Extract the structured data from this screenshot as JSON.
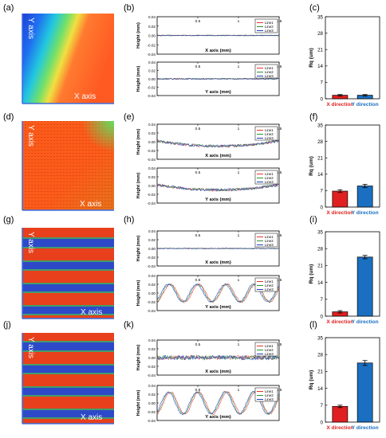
{
  "panel_labels": [
    "(a)",
    "(b)",
    "(c)",
    "(d)",
    "(e)",
    "(f)",
    "(g)",
    "(h)",
    "(i)",
    "(j)",
    "(k)",
    "(l)"
  ],
  "images": [
    {
      "id": "a",
      "x_label": "X axis",
      "y_label": "Y axis",
      "style": "gradient"
    },
    {
      "id": "d",
      "x_label": "X axis",
      "y_label": "Y axis",
      "style": "noise"
    },
    {
      "id": "g",
      "x_label": "X axis",
      "y_label": "Y axis",
      "style": "stripes"
    },
    {
      "id": "j",
      "x_label": "X axis",
      "y_label": "Y axis",
      "style": "stripes"
    }
  ],
  "colors": {
    "line1": "#e8322b",
    "line2": "#2f8f3a",
    "line3": "#1f3fbf",
    "bar_x": "#e02020",
    "bar_y": "#1a6fc0",
    "x_direction_text": "#e02020",
    "y_direction_text": "#1a6fc0"
  },
  "chart_data": [
    {
      "id": "b-top",
      "type": "line",
      "xlabel": "X axis (mm)",
      "ylabel": "Height (mm)",
      "xlim": [
        0,
        1.5
      ],
      "ylim": [
        -0.04,
        0.04
      ],
      "x_ticks": [
        "0.5",
        "1",
        "1.5"
      ],
      "y_ticks": [
        "0.04",
        "0.02",
        "0.00",
        "-0.02",
        "-0.04"
      ],
      "series": [
        {
          "name": "Line1",
          "shape": "flat",
          "amplitude": 0.001
        },
        {
          "name": "Line2",
          "shape": "flat",
          "amplitude": 0.001
        },
        {
          "name": "Line3",
          "shape": "flat",
          "amplitude": 0.001
        }
      ]
    },
    {
      "id": "b-bottom",
      "type": "line",
      "xlabel": "Y axis (mm)",
      "ylabel": "Height (mm)",
      "xlim": [
        0,
        1.5
      ],
      "ylim": [
        -0.04,
        0.04
      ],
      "x_ticks": [
        "0.5",
        "1",
        "1.5"
      ],
      "y_ticks": [
        "0.04",
        "0.02",
        "0.00",
        "-0.02",
        "-0.04"
      ],
      "series": [
        {
          "name": "Line1",
          "shape": "flat",
          "amplitude": 0.0015
        },
        {
          "name": "Line2",
          "shape": "flat",
          "amplitude": 0.0015
        },
        {
          "name": "Line3",
          "shape": "flat",
          "amplitude": 0.0015
        }
      ]
    },
    {
      "id": "e-top",
      "type": "line",
      "xlabel": "X axis (mm)",
      "ylabel": "Height (mm)",
      "xlim": [
        0,
        1.5
      ],
      "ylim": [
        -0.04,
        0.04
      ],
      "x_ticks": [
        "0.5",
        "1",
        "1.5"
      ],
      "y_ticks": [
        "0.04",
        "0.02",
        "0.00",
        "-0.02",
        "-0.04"
      ],
      "series": [
        {
          "name": "Line1",
          "shape": "bowl",
          "amplitude": 0.003
        },
        {
          "name": "Line2",
          "shape": "bowl",
          "amplitude": 0.003
        },
        {
          "name": "Line3",
          "shape": "bowl",
          "amplitude": 0.003
        }
      ]
    },
    {
      "id": "e-bottom",
      "type": "line",
      "xlabel": "Y axis (mm)",
      "ylabel": "Height (mm)",
      "xlim": [
        0,
        1.5
      ],
      "ylim": [
        -0.04,
        0.04
      ],
      "x_ticks": [
        "0.5",
        "1",
        "1.5"
      ],
      "y_ticks": [
        "0.04",
        "0.02",
        "0.00",
        "-0.02",
        "-0.04"
      ],
      "series": [
        {
          "name": "Line1",
          "shape": "bowl",
          "amplitude": 0.003
        },
        {
          "name": "Line2",
          "shape": "bowl",
          "amplitude": 0.003
        },
        {
          "name": "Line3",
          "shape": "bowl",
          "amplitude": 0.003
        }
      ]
    },
    {
      "id": "h-top",
      "type": "line",
      "xlabel": "X axis (mm)",
      "ylabel": "Height (mm)",
      "xlim": [
        0,
        1.5
      ],
      "ylim": [
        -0.04,
        0.04
      ],
      "x_ticks": [
        "0.5",
        "1",
        "1.5"
      ],
      "y_ticks": [
        "0.04",
        "0.02",
        "0.00",
        "-0.02",
        "-0.04"
      ],
      "series": [
        {
          "name": "Line1",
          "shape": "flat",
          "amplitude": 0.001
        },
        {
          "name": "Line2",
          "shape": "flat",
          "amplitude": 0.001
        },
        {
          "name": "Line3",
          "shape": "flat",
          "amplitude": 0.001
        }
      ]
    },
    {
      "id": "h-bottom",
      "type": "line",
      "xlabel": "Y axis (mm)",
      "ylabel": "Height (mm)",
      "xlim": [
        0,
        1.5
      ],
      "ylim": [
        -0.04,
        0.04
      ],
      "x_ticks": [
        "0.5",
        "1",
        "1.5"
      ],
      "y_ticks": [
        "0.04",
        "0.02",
        "0.00",
        "-0.02",
        "-0.04"
      ],
      "series": [
        {
          "name": "Line1",
          "shape": "wave",
          "amplitude": 0.002,
          "wave_amplitude": 0.02,
          "periods": 4.3
        },
        {
          "name": "Line2",
          "shape": "wave",
          "amplitude": 0.002,
          "wave_amplitude": 0.02,
          "periods": 4.3
        },
        {
          "name": "Line3",
          "shape": "wave",
          "amplitude": 0.002,
          "wave_amplitude": 0.02,
          "periods": 4.3
        }
      ]
    },
    {
      "id": "k-top",
      "type": "line",
      "xlabel": "X axis (mm)",
      "ylabel": "Height (mm)",
      "xlim": [
        0,
        1.5
      ],
      "ylim": [
        -0.04,
        0.04
      ],
      "x_ticks": [
        "0.5",
        "1",
        "1.5"
      ],
      "y_ticks": [
        "0.04",
        "0.02",
        "0.00",
        "-0.02",
        "-0.04"
      ],
      "series": [
        {
          "name": "Line1",
          "shape": "flat",
          "amplitude": 0.005
        },
        {
          "name": "Line2",
          "shape": "flat",
          "amplitude": 0.005
        },
        {
          "name": "Line3",
          "shape": "flat",
          "amplitude": 0.005
        }
      ]
    },
    {
      "id": "k-bottom",
      "type": "line",
      "xlabel": "Y axis (mm)",
      "ylabel": "Height (mm)",
      "xlim": [
        0,
        1.5
      ],
      "ylim": [
        -0.04,
        0.04
      ],
      "x_ticks": [
        "0.5",
        "1",
        "1.5"
      ],
      "y_ticks": [
        "0.04",
        "0.02",
        "0.00",
        "-0.02",
        "-0.04"
      ],
      "series": [
        {
          "name": "Line1",
          "shape": "wave",
          "amplitude": 0.002,
          "wave_amplitude": 0.025,
          "periods": 4.3
        },
        {
          "name": "Line2",
          "shape": "wave",
          "amplitude": 0.002,
          "wave_amplitude": 0.025,
          "periods": 4.3
        },
        {
          "name": "Line3",
          "shape": "wave",
          "amplitude": 0.002,
          "wave_amplitude": 0.025,
          "periods": 4.3
        }
      ]
    },
    {
      "id": "c",
      "type": "bar",
      "ylabel": "Rq (um)",
      "ylim": [
        0,
        35
      ],
      "y_ticks": [
        "35",
        "28",
        "21",
        "14",
        "7",
        "0"
      ],
      "categories": [
        "X direction",
        "Y direction"
      ],
      "values": [
        1.5,
        1.5
      ],
      "errors": [
        0.3,
        0.3
      ]
    },
    {
      "id": "f",
      "type": "bar",
      "ylabel": "Rq (um)",
      "ylim": [
        0,
        35
      ],
      "y_ticks": [
        "35",
        "28",
        "21",
        "14",
        "7",
        "0"
      ],
      "categories": [
        "X direction",
        "Y direction"
      ],
      "values": [
        6.8,
        9.0
      ],
      "errors": [
        0.6,
        0.7
      ]
    },
    {
      "id": "i",
      "type": "bar",
      "ylabel": "Rq (um)",
      "ylim": [
        0,
        35
      ],
      "y_ticks": [
        "35",
        "28",
        "21",
        "14",
        "7",
        "0"
      ],
      "categories": [
        "X direction",
        "Y direction"
      ],
      "values": [
        1.8,
        24.5
      ],
      "errors": [
        0.5,
        0.7
      ]
    },
    {
      "id": "l",
      "type": "bar",
      "ylabel": "Rq (um)",
      "ylim": [
        0,
        35
      ],
      "y_ticks": [
        "35",
        "28",
        "21",
        "14",
        "7",
        "0"
      ],
      "categories": [
        "X direction",
        "Y direction"
      ],
      "values": [
        6.5,
        24.5
      ],
      "errors": [
        0.5,
        1.0
      ]
    }
  ]
}
